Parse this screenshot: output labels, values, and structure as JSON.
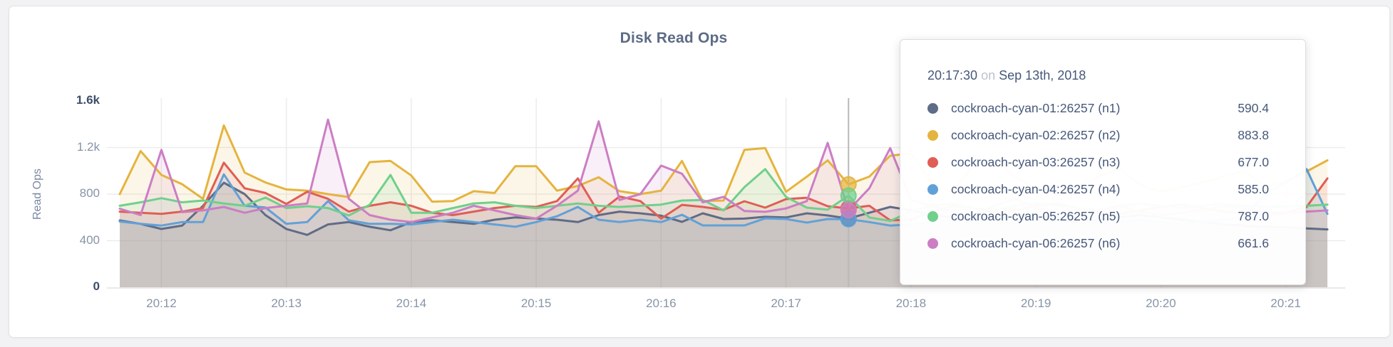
{
  "chart_data": {
    "type": "area",
    "title": "Disk Read Ops",
    "ylabel": "Read Ops",
    "ylim": [
      0,
      1600
    ],
    "grid": true,
    "x_start_time": "20:11:40",
    "x_interval_seconds": 10,
    "x_ticks": [
      {
        "label": "20:12",
        "index": 2
      },
      {
        "label": "20:13",
        "index": 8
      },
      {
        "label": "20:14",
        "index": 14
      },
      {
        "label": "20:15",
        "index": 20
      },
      {
        "label": "20:16",
        "index": 26
      },
      {
        "label": "20:17",
        "index": 32
      },
      {
        "label": "20:18",
        "index": 38
      },
      {
        "label": "20:19",
        "index": 44
      },
      {
        "label": "20:20",
        "index": 50
      },
      {
        "label": "20:21",
        "index": 56
      }
    ],
    "y_ticks": [
      {
        "label": "0",
        "value": 0,
        "emphasis": true,
        "gridline": false
      },
      {
        "label": "400",
        "value": 400,
        "emphasis": false,
        "gridline": true
      },
      {
        "label": "800",
        "value": 800,
        "emphasis": false,
        "gridline": true
      },
      {
        "label": "1.2k",
        "value": 1200,
        "emphasis": false,
        "gridline": true
      },
      {
        "label": "1.6k",
        "value": 1600,
        "emphasis": true,
        "gridline": false
      }
    ],
    "hover": {
      "index": 35,
      "time": "20:17:30"
    },
    "series": [
      {
        "name": "cockroach-cyan-01:26257 (n1)",
        "color": "#5f6c87",
        "values": [
          574,
          545,
          501,
          530,
          700,
          898,
          800,
          620,
          500,
          450,
          540,
          560,
          520,
          490,
          560,
          575,
          560,
          545,
          580,
          600,
          590,
          580,
          560,
          620,
          650,
          635,
          615,
          562,
          635,
          586,
          590,
          605,
          600,
          635,
          617,
          590.4,
          640,
          690,
          660,
          620,
          600,
          580,
          600,
          620,
          600,
          580,
          560,
          580,
          600,
          620,
          600,
          580,
          560,
          540,
          530,
          520,
          515,
          505,
          497
        ]
      },
      {
        "name": "cockroach-cyan-02:26257 (n2)",
        "color": "#e5b43e",
        "values": [
          800,
          1170,
          965,
          885,
          760,
          1390,
          985,
          900,
          840,
          830,
          800,
          775,
          1075,
          1085,
          960,
          735,
          740,
          825,
          810,
          1040,
          1040,
          830,
          870,
          945,
          825,
          800,
          830,
          1085,
          740,
          745,
          1180,
          1195,
          820,
          950,
          1090,
          883.8,
          950,
          1130,
          1150,
          900,
          820,
          1050,
          1100,
          950,
          850,
          800,
          870,
          950,
          1020,
          880,
          820,
          860,
          900,
          950,
          1000,
          870,
          900,
          995,
          1090
        ]
      },
      {
        "name": "cockroach-cyan-03:26257 (n3)",
        "color": "#df5e55",
        "values": [
          650,
          640,
          630,
          650,
          680,
          1070,
          850,
          810,
          716,
          820,
          760,
          650,
          700,
          730,
          700,
          640,
          620,
          650,
          680,
          700,
          690,
          740,
          935,
          640,
          780,
          740,
          590,
          708,
          690,
          665,
          739,
          684,
          757,
          769,
          696,
          677,
          700,
          575,
          580,
          650,
          700,
          680,
          640,
          660,
          700,
          720,
          680,
          650,
          630,
          660,
          690,
          710,
          680,
          650,
          630,
          620,
          640,
          690,
          935
        ]
      },
      {
        "name": "cockroach-cyan-04:26257 (n4)",
        "color": "#61a1d8",
        "values": [
          565,
          545,
          530,
          560,
          560,
          970,
          700,
          685,
          545,
          560,
          740,
          575,
          545,
          545,
          540,
          560,
          580,
          560,
          540,
          520,
          560,
          610,
          690,
          580,
          560,
          580,
          560,
          623,
          531,
          531,
          531,
          592,
          586,
          556,
          586,
          585,
          560,
          530,
          540,
          560,
          580,
          560,
          540,
          560,
          580,
          600,
          570,
          550,
          560,
          580,
          560,
          540,
          560,
          580,
          600,
          800,
          900,
          1015,
          630
        ]
      },
      {
        "name": "cockroach-cyan-05:26257 (n5)",
        "color": "#6fd08c",
        "values": [
          700,
          730,
          765,
          730,
          745,
          720,
          700,
          770,
          680,
          696,
          680,
          617,
          708,
          965,
          640,
          640,
          680,
          720,
          730,
          700,
          680,
          700,
          720,
          700,
          690,
          700,
          710,
          745,
          750,
          660,
          860,
          1015,
          776,
          684,
          666,
          787,
          600,
          570,
          650,
          700,
          720,
          680,
          660,
          700,
          720,
          700,
          680,
          660,
          700,
          720,
          700,
          680,
          700,
          720,
          700,
          690,
          695,
          700,
          710
        ]
      },
      {
        "name": "cockroach-cyan-06:26257 (n6)",
        "color": "#cb7ec4",
        "values": [
          675,
          620,
          1180,
          645,
          660,
          690,
          640,
          680,
          700,
          720,
          1440,
          760,
          620,
          580,
          560,
          600,
          640,
          700,
          660,
          620,
          590,
          700,
          830,
          1425,
          750,
          800,
          1045,
          975,
          730,
          777,
          655,
          648,
          677,
          740,
          1240,
          661.6,
          850,
          1195,
          750,
          700,
          650,
          620,
          700,
          760,
          680,
          640,
          620,
          660,
          700,
          650,
          620,
          640,
          660,
          700,
          680,
          650,
          640,
          650,
          660
        ]
      }
    ]
  },
  "tooltip": {
    "time": "20:17:30",
    "conjunction": "on",
    "date": "Sep 13th, 2018",
    "rows": [
      {
        "name": "cockroach-cyan-01:26257 (n1)",
        "value": "590.4",
        "color": "#5f6c87"
      },
      {
        "name": "cockroach-cyan-02:26257 (n2)",
        "value": "883.8",
        "color": "#e5b43e"
      },
      {
        "name": "cockroach-cyan-03:26257 (n3)",
        "value": "677.0",
        "color": "#df5e55"
      },
      {
        "name": "cockroach-cyan-04:26257 (n4)",
        "value": "585.0",
        "color": "#61a1d8"
      },
      {
        "name": "cockroach-cyan-05:26257 (n5)",
        "value": "787.0",
        "color": "#6fd08c"
      },
      {
        "name": "cockroach-cyan-06:26257 (n6)",
        "value": "661.6",
        "color": "#cb7ec4"
      }
    ]
  },
  "style": {
    "gridline_color": "#ececec",
    "axis_line_color": "#e2e2e2",
    "hover_line_color": "#b9b9b9",
    "fill_opacity": 0.12
  }
}
